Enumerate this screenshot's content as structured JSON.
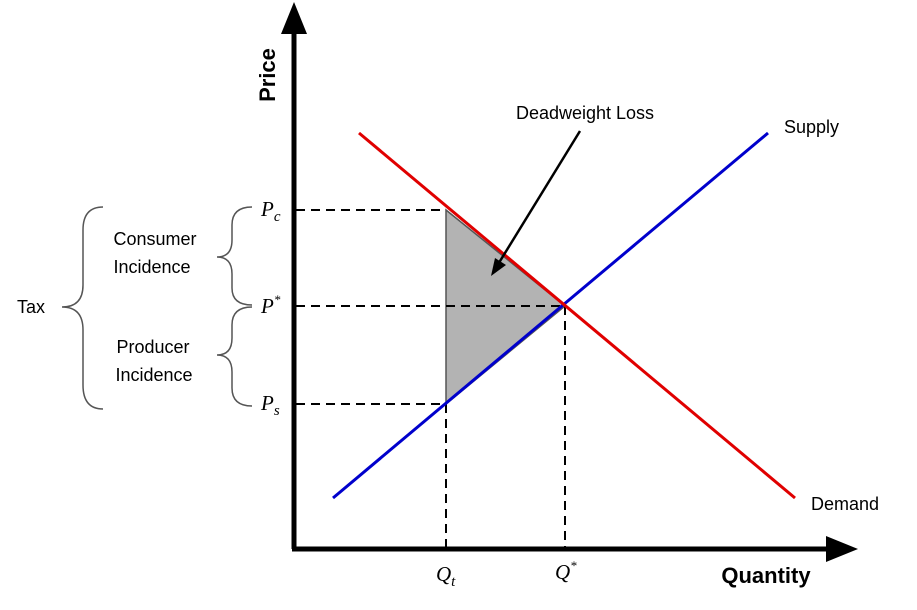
{
  "axes": {
    "x_label": "Quantity",
    "y_label": "Price"
  },
  "curves": {
    "supply": {
      "label": "Supply",
      "color": "#0000cc"
    },
    "demand": {
      "label": "Demand",
      "color": "#e00000"
    }
  },
  "deadweight_loss": {
    "label": "Deadweight Loss",
    "fill": "#b3b3b3"
  },
  "price_ticks": {
    "pc": {
      "main": "P",
      "sub": "c"
    },
    "pstar": {
      "main": "P",
      "sup": "*"
    },
    "ps": {
      "main": "P",
      "sub": "s"
    }
  },
  "quantity_ticks": {
    "qt": {
      "main": "Q",
      "sub": "t"
    },
    "qstar": {
      "main": "Q",
      "sup": "*"
    }
  },
  "incidence": {
    "consumer_line1": "Consumer",
    "consumer_line2": "Incidence",
    "producer_line1": "Producer",
    "producer_line2": "Incidence",
    "tax": "Tax"
  }
}
